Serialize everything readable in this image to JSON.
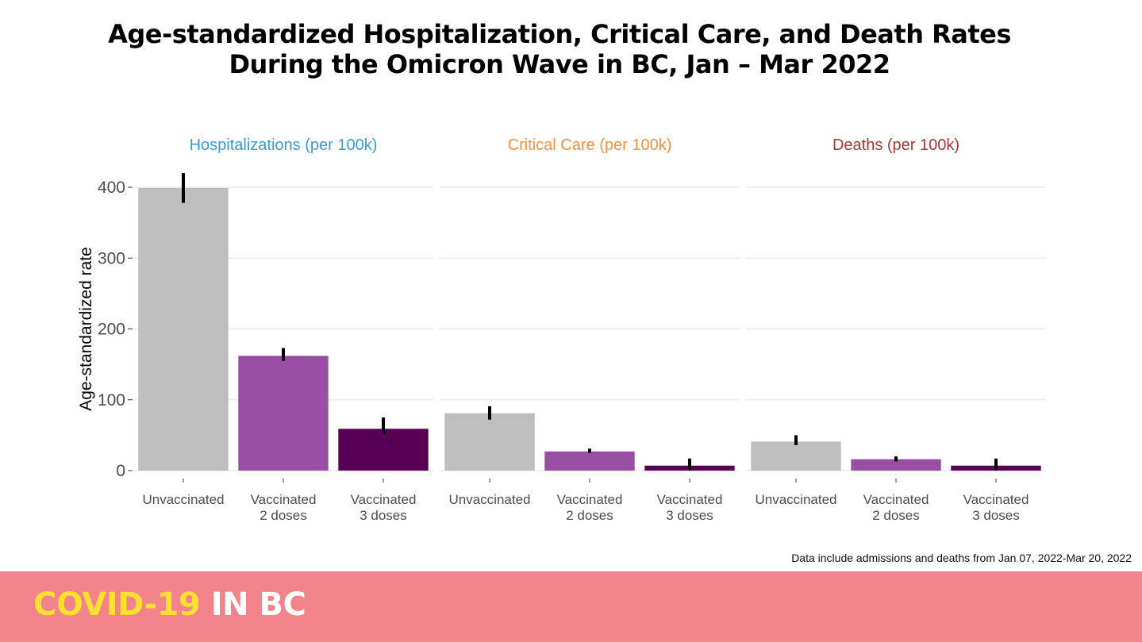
{
  "chart_data": {
    "type": "bar",
    "title": "Age-standardized Hospitalization, Critical Care, and Death Rates During the Omicron Wave in BC, Jan – Mar 2022",
    "title_lines": [
      "Age-standardized Hospitalization, Critical Care, and Death Rates",
      "During the Omicron Wave in BC, Jan – Mar 2022"
    ],
    "ylabel": "Age-standardized rate",
    "xlabel": "",
    "ylim": [
      0,
      420
    ],
    "yticks": [
      0,
      100,
      200,
      300,
      400
    ],
    "grid": true,
    "categories": [
      [
        "Unvaccinated"
      ],
      [
        "Vaccinated",
        "2 doses"
      ],
      [
        "Vaccinated",
        "3 doses"
      ]
    ],
    "category_colors": [
      "#bebebe",
      "#984ea3",
      "#570054"
    ],
    "panels": [
      {
        "name": "Hospitalizations (per 100k)",
        "title_color": "#3b9ad9",
        "values": [
          399,
          162,
          59
        ],
        "error_low": [
          378,
          155,
          52
        ],
        "error_high": [
          420,
          173,
          75
        ]
      },
      {
        "name": "Critical Care (per 100k)",
        "title_color": "#f7903f",
        "values": [
          81,
          27,
          7
        ],
        "error_low": [
          72,
          25,
          0
        ],
        "error_high": [
          91,
          31,
          17
        ]
      },
      {
        "name": "Deaths (per 100k)",
        "title_color": "#a33a35",
        "values": [
          41,
          16,
          7
        ],
        "error_low": [
          36,
          13,
          0
        ],
        "error_high": [
          50,
          20,
          17
        ]
      }
    ],
    "legend": "none"
  },
  "footnote": "Data include admissions and deaths from Jan 07, 2022-Mar 20, 2022",
  "banner": {
    "part1": "COVID-19",
    "part2": " IN BC",
    "background": "#f2838a",
    "part1_color": "#fde02f",
    "part2_color": "#ffffff"
  }
}
